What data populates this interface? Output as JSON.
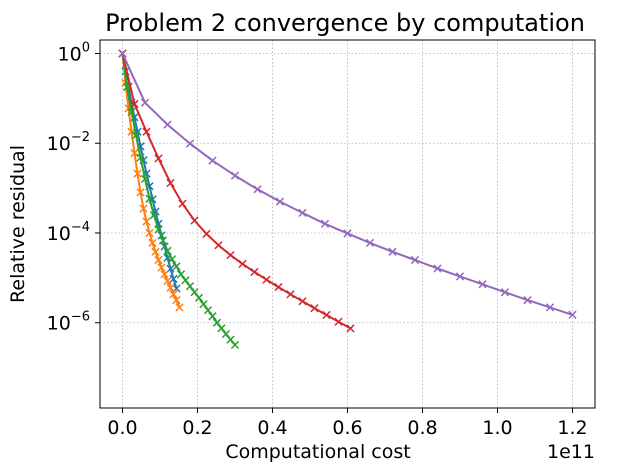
{
  "chart_data": {
    "type": "line",
    "title": "Problem 2 convergence by computation",
    "xlabel": "Computational cost",
    "ylabel": "Relative residual",
    "x_offset_label": "1e11",
    "x_scale": "linear",
    "y_scale": "log",
    "xlim": [
      -0.06,
      1.26
    ],
    "ylim_log10": [
      -7.9,
      0.3
    ],
    "x_tick_labels": [
      "0.0",
      "0.2",
      "0.4",
      "0.6",
      "0.8",
      "1.0",
      "1.2"
    ],
    "x_ticks": [
      0.0,
      0.2,
      0.4,
      0.6,
      0.8,
      1.0,
      1.2
    ],
    "y_ticks_log10": [
      0,
      -2,
      -4,
      -6
    ],
    "y_tick_base": "10",
    "y_tick_exponents": [
      "0",
      "−2",
      "−4",
      "−6"
    ],
    "grid": true,
    "marker": "x",
    "series": [
      {
        "color": "#1f77b4",
        "points": [
          [
            0.0,
            1.0
          ],
          [
            0.008,
            0.4
          ],
          [
            0.016,
            0.18
          ],
          [
            0.024,
            0.08
          ],
          [
            0.032,
            0.038
          ],
          [
            0.04,
            0.018
          ],
          [
            0.048,
            0.0085
          ],
          [
            0.056,
            0.0042
          ],
          [
            0.064,
            0.0021
          ],
          [
            0.072,
            0.0011
          ],
          [
            0.08,
            0.00056
          ],
          [
            0.088,
            0.0003
          ],
          [
            0.096,
            0.00016
          ],
          [
            0.104,
            8.8e-05
          ],
          [
            0.112,
            5e-05
          ],
          [
            0.12,
            2.8e-05
          ],
          [
            0.128,
            1.6e-05
          ],
          [
            0.136,
            9.5e-06
          ],
          [
            0.144,
            5.8e-06
          ]
        ]
      },
      {
        "color": "#ff7f0e",
        "points": [
          [
            0.0,
            1.0
          ],
          [
            0.008,
            0.22
          ],
          [
            0.016,
            0.06
          ],
          [
            0.024,
            0.018
          ],
          [
            0.032,
            0.006
          ],
          [
            0.04,
            0.0021
          ],
          [
            0.048,
            0.0008
          ],
          [
            0.056,
            0.00035
          ],
          [
            0.064,
            0.00018
          ],
          [
            0.072,
            0.0001
          ],
          [
            0.08,
            6e-05
          ],
          [
            0.088,
            3.8e-05
          ],
          [
            0.096,
            2.5e-05
          ],
          [
            0.104,
            1.7e-05
          ],
          [
            0.112,
            1.2e-05
          ],
          [
            0.12,
            8.5e-06
          ],
          [
            0.128,
            6e-06
          ],
          [
            0.136,
            4.3e-06
          ],
          [
            0.144,
            3.2e-06
          ],
          [
            0.152,
            2.2e-06
          ]
        ]
      },
      {
        "color": "#2ca02c",
        "points": [
          [
            0.0,
            1.0
          ],
          [
            0.012,
            0.18
          ],
          [
            0.024,
            0.05
          ],
          [
            0.036,
            0.015
          ],
          [
            0.048,
            0.0048
          ],
          [
            0.06,
            0.0016
          ],
          [
            0.072,
            0.00058
          ],
          [
            0.084,
            0.00025
          ],
          [
            0.096,
            0.00012
          ],
          [
            0.108,
            6.8e-05
          ],
          [
            0.12,
            4e-05
          ],
          [
            0.132,
            2.6e-05
          ],
          [
            0.144,
            1.8e-05
          ],
          [
            0.156,
            1.2e-05
          ],
          [
            0.168,
            8.8e-06
          ],
          [
            0.18,
            6.5e-06
          ],
          [
            0.192,
            4.8e-06
          ],
          [
            0.204,
            3.6e-06
          ],
          [
            0.216,
            2.6e-06
          ],
          [
            0.228,
            1.9e-06
          ],
          [
            0.24,
            1.4e-06
          ],
          [
            0.252,
            1e-06
          ],
          [
            0.264,
            7.5e-07
          ],
          [
            0.276,
            5.6e-07
          ],
          [
            0.288,
            4.2e-07
          ],
          [
            0.3,
            3.2e-07
          ]
        ]
      },
      {
        "color": "#d62728",
        "points": [
          [
            0.0,
            1.0
          ],
          [
            0.032,
            0.075
          ],
          [
            0.064,
            0.018
          ],
          [
            0.096,
            0.0046
          ],
          [
            0.128,
            0.0013
          ],
          [
            0.16,
            0.00045
          ],
          [
            0.192,
            0.00019
          ],
          [
            0.224,
            9.53e-05
          ],
          [
            0.256,
            5.34e-05
          ],
          [
            0.288,
            3.22e-05
          ],
          [
            0.32,
            2.05e-05
          ],
          [
            0.352,
            1.35e-05
          ],
          [
            0.384,
            9.08e-06
          ],
          [
            0.416,
            6.22e-06
          ],
          [
            0.448,
            4.31e-06
          ],
          [
            0.48,
            3.01e-06
          ],
          [
            0.512,
            2.11e-06
          ],
          [
            0.544,
            1.49e-06
          ],
          [
            0.576,
            1.05e-06
          ],
          [
            0.608,
            7.46e-07
          ]
        ]
      },
      {
        "color": "#9467bd",
        "points": [
          [
            0.0,
            1.0
          ],
          [
            0.06,
            0.08
          ],
          [
            0.12,
            0.026
          ],
          [
            0.18,
            0.0098
          ],
          [
            0.24,
            0.0041
          ],
          [
            0.3,
            0.0019
          ],
          [
            0.36,
            0.00094
          ],
          [
            0.42,
            0.0005
          ],
          [
            0.48,
            0.00028
          ],
          [
            0.54,
            0.00016
          ],
          [
            0.6,
            9.8e-05
          ],
          [
            0.66,
            6e-05
          ],
          [
            0.72,
            3.8e-05
          ],
          [
            0.78,
            2.5e-05
          ],
          [
            0.84,
            1.62e-05
          ],
          [
            0.9,
            1.08e-05
          ],
          [
            0.96,
            7.2e-06
          ],
          [
            1.02,
            4.8e-06
          ],
          [
            1.08,
            3.2e-06
          ],
          [
            1.14,
            2.2e-06
          ],
          [
            1.2,
            1.5e-06
          ]
        ]
      }
    ]
  }
}
